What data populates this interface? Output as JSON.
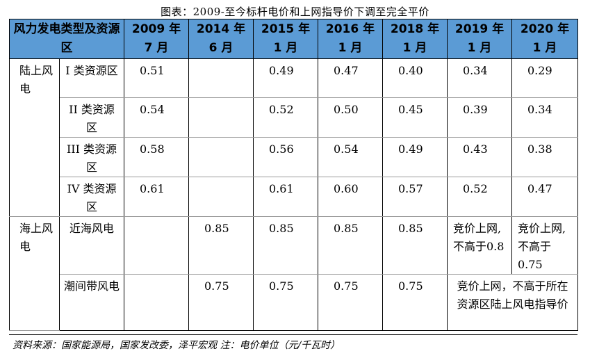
{
  "title": "图表：2009-至今标杆电价和上网指导价下调至完全平价",
  "table": {
    "header_category": "风力发电类型及资源区",
    "periods": [
      "2009 年 7 月",
      "2014 年 6 月",
      "2015 年 1 月",
      "2016 年 1 月",
      "2018 年 1 月",
      "2019 年 1 月",
      "2020 年 1 月"
    ],
    "onshore": {
      "label": "陆上风电",
      "rows": [
        {
          "sub": "I 类资源区",
          "values": [
            "0.51",
            "",
            "0.49",
            "0.47",
            "0.40",
            "0.34",
            "0.29"
          ]
        },
        {
          "sub": "II 类资源区",
          "values": [
            "0.54",
            "",
            "0.52",
            "0.50",
            "0.45",
            "0.39",
            "0.34"
          ]
        },
        {
          "sub": "III 类资源区",
          "values": [
            "0.58",
            "",
            "0.56",
            "0.54",
            "0.49",
            "0.43",
            "0.38"
          ]
        },
        {
          "sub": "IV 类资源区",
          "values": [
            "0.61",
            "",
            "0.61",
            "0.60",
            "0.57",
            "0.52",
            "0.47"
          ]
        }
      ]
    },
    "offshore": {
      "label": "海上风电",
      "nearshore": {
        "sub": "近海风电",
        "values": [
          "",
          "0.85",
          "0.85",
          "0.85",
          "0.85"
        ],
        "note_2019": "竞价上网,不高于0.8",
        "note_2020": "竞价上网,不高于0.75"
      },
      "intertidal": {
        "sub": "潮间带风电",
        "values": [
          "",
          "0.75",
          "0.75",
          "0.75",
          "0.75"
        ],
        "note_2019_2020": "竞价上网，不高于所在资源区陆上风电指导价"
      }
    }
  },
  "source": "资料来源：国家能源局，国家发改委，泽平宏观 注：电价单位（元/千瓦时）"
}
